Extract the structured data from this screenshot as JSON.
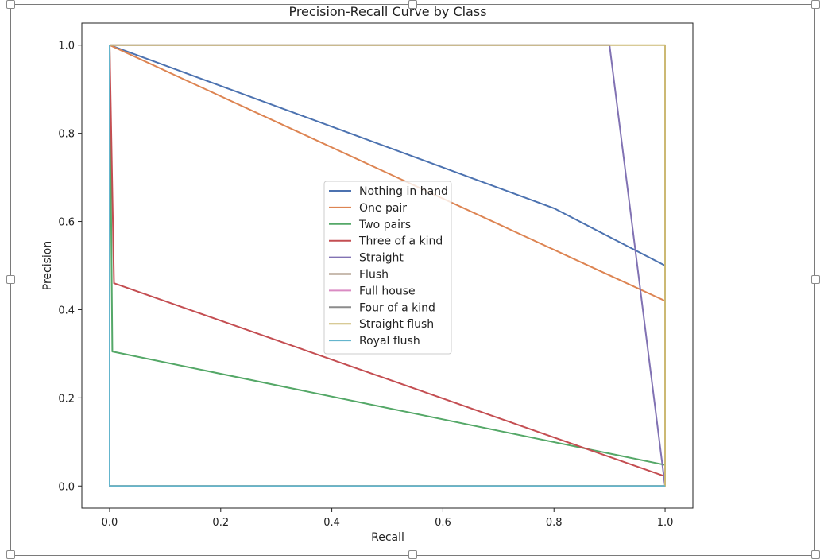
{
  "chart_data": {
    "type": "line",
    "title": "Precision-Recall Curve by Class",
    "xlabel": "Recall",
    "ylabel": "Precision",
    "xlim": [
      -0.05,
      1.05
    ],
    "ylim": [
      -0.05,
      1.05
    ],
    "xticks": [
      "0.0",
      "0.2",
      "0.4",
      "0.6",
      "0.8",
      "1.0"
    ],
    "yticks": [
      "0.0",
      "0.2",
      "0.4",
      "0.6",
      "0.8",
      "1.0"
    ],
    "grid": false,
    "legend_position": "center",
    "series": [
      {
        "name": "Nothing in hand",
        "color": "#4c72b0",
        "x": [
          0,
          0.8,
          1.0,
          1.0
        ],
        "y": [
          1.0,
          0.63,
          0.5,
          0.0
        ]
      },
      {
        "name": "One pair",
        "color": "#dd8452",
        "x": [
          0,
          1.0,
          1.0
        ],
        "y": [
          1.0,
          0.42,
          0.0
        ]
      },
      {
        "name": "Two pairs",
        "color": "#55a868",
        "x": [
          0,
          0.005,
          1.0,
          1.0
        ],
        "y": [
          1.0,
          0.305,
          0.048,
          0.0
        ]
      },
      {
        "name": "Three of a kind",
        "color": "#c44e52",
        "x": [
          0,
          0.008,
          1.0,
          1.0
        ],
        "y": [
          1.0,
          0.46,
          0.022,
          0.0
        ]
      },
      {
        "name": "Straight",
        "color": "#8172b3",
        "x": [
          0,
          0.9,
          1.0,
          1.0
        ],
        "y": [
          1.0,
          1.0,
          0.0,
          0.0
        ]
      },
      {
        "name": "Flush",
        "color": "#937860",
        "x": [
          0,
          0,
          1.0
        ],
        "y": [
          1.0,
          0.0,
          0.0
        ]
      },
      {
        "name": "Full house",
        "color": "#da8bc3",
        "x": [
          0,
          0,
          1.0
        ],
        "y": [
          1.0,
          0.0,
          0.0
        ]
      },
      {
        "name": "Four of a kind",
        "color": "#8c8c8c",
        "x": [
          0,
          0,
          1.0
        ],
        "y": [
          1.0,
          0.0,
          0.0
        ]
      },
      {
        "name": "Straight flush",
        "color": "#ccb974",
        "x": [
          0,
          1.0,
          1.0,
          0
        ],
        "y": [
          1.0,
          1.0,
          0.0,
          0.0
        ]
      },
      {
        "name": "Royal flush",
        "color": "#64b5cd",
        "x": [
          0,
          0,
          1.0
        ],
        "y": [
          1.0,
          0.0,
          0.0
        ]
      }
    ]
  }
}
